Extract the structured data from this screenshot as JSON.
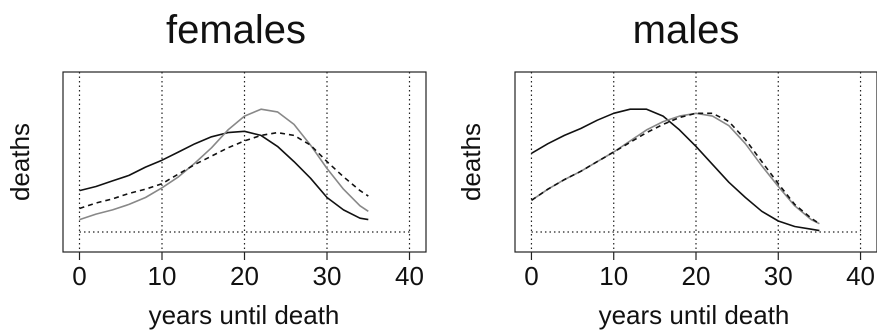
{
  "chart_data": [
    {
      "type": "line",
      "title": "females",
      "xlabel": "years until death",
      "ylabel": "deaths",
      "xlim": [
        -2,
        42
      ],
      "ylim": [
        0,
        100
      ],
      "xticks": [
        0,
        10,
        20,
        30,
        40
      ],
      "xtick_labels": [
        "0",
        "10",
        "20",
        "30",
        "40"
      ],
      "vgrid": [
        0,
        10,
        20,
        30,
        40
      ],
      "baseline": 0,
      "series": [
        {
          "color": "#111111",
          "dash": "solid",
          "x": [
            0,
            2,
            4,
            6,
            8,
            10,
            12,
            14,
            16,
            18,
            20,
            22,
            24,
            26,
            28,
            30,
            32,
            34,
            35
          ],
          "y": [
            30,
            33,
            37,
            41,
            47,
            52,
            58,
            64,
            69,
            72,
            73,
            70,
            62,
            51,
            39,
            25,
            16,
            10,
            9
          ]
        },
        {
          "color": "#888888",
          "dash": "solid",
          "x": [
            0,
            2,
            4,
            6,
            8,
            10,
            12,
            14,
            16,
            18,
            20,
            22,
            24,
            26,
            28,
            30,
            32,
            34,
            35
          ],
          "y": [
            9,
            13,
            16,
            20,
            25,
            32,
            40,
            50,
            61,
            74,
            84,
            89,
            87,
            78,
            63,
            46,
            31,
            19,
            15
          ]
        },
        {
          "color": "#111111",
          "dash": "dashed",
          "x": [
            0,
            2,
            4,
            6,
            8,
            10,
            12,
            14,
            16,
            18,
            20,
            22,
            24,
            26,
            28,
            30,
            32,
            34,
            35
          ],
          "y": [
            17,
            21,
            24,
            28,
            31,
            35,
            42,
            49,
            55,
            61,
            66,
            70,
            72,
            70,
            63,
            51,
            40,
            30,
            26
          ]
        }
      ]
    },
    {
      "type": "line",
      "title": "males",
      "xlabel": "years until death",
      "ylabel": "deaths",
      "xlim": [
        -2,
        42
      ],
      "ylim": [
        0,
        100
      ],
      "xticks": [
        0,
        10,
        20,
        30,
        40
      ],
      "xtick_labels": [
        "0",
        "10",
        "20",
        "30",
        "40"
      ],
      "vgrid": [
        0,
        10,
        20,
        30,
        40
      ],
      "baseline": 0,
      "series": [
        {
          "color": "#111111",
          "dash": "solid",
          "x": [
            0,
            2,
            4,
            6,
            8,
            10,
            12,
            14,
            16,
            18,
            20,
            22,
            24,
            26,
            28,
            30,
            32,
            34,
            35
          ],
          "y": [
            57,
            64,
            70,
            75,
            81,
            86,
            89,
            89,
            84,
            74,
            62,
            49,
            36,
            25,
            15,
            8,
            4,
            2,
            1
          ]
        },
        {
          "color": "#888888",
          "dash": "solid",
          "x": [
            0,
            2,
            4,
            6,
            8,
            10,
            12,
            14,
            16,
            18,
            20,
            22,
            24,
            26,
            28,
            30,
            32,
            34,
            35
          ],
          "y": [
            23,
            31,
            38,
            44,
            51,
            58,
            66,
            74,
            80,
            84,
            86,
            84,
            77,
            64,
            48,
            33,
            19,
            9,
            6
          ]
        },
        {
          "color": "#111111",
          "dash": "dashed",
          "x": [
            0,
            2,
            4,
            6,
            8,
            10,
            12,
            14,
            16,
            18,
            20,
            22,
            24,
            26,
            28,
            30,
            32,
            34,
            35
          ],
          "y": [
            23,
            31,
            38,
            44,
            51,
            58,
            65,
            72,
            78,
            83,
            86,
            86,
            80,
            67,
            51,
            35,
            20,
            10,
            6
          ]
        }
      ]
    }
  ]
}
